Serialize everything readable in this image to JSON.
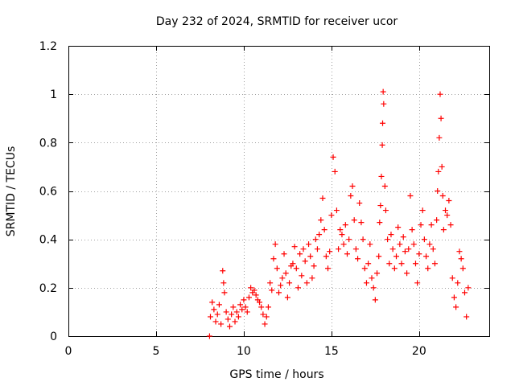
{
  "chart_data": {
    "type": "scatter",
    "title": "Day 232 of 2024, SRMTID for receiver ucor",
    "xlabel": "GPS time / hours",
    "ylabel": "SRMTID / TECUs",
    "xlim": [
      0,
      24
    ],
    "ylim": [
      0,
      1.2
    ],
    "x_ticks": [
      0,
      5,
      10,
      15,
      20
    ],
    "x_tick_labels": [
      "0",
      "5",
      "10",
      "15",
      "20"
    ],
    "y_ticks": [
      0,
      0.2,
      0.4,
      0.6,
      0.8,
      1,
      1.2
    ],
    "y_tick_labels": [
      "0",
      "0.2",
      "0.4",
      "0.6",
      "0.8",
      "1",
      "1.2"
    ],
    "grid": true,
    "marker": "+",
    "series": [
      {
        "name": "SRMTID",
        "color": "#ff0000",
        "points": [
          [
            8.05,
            0.0
          ],
          [
            8.1,
            0.08
          ],
          [
            8.2,
            0.14
          ],
          [
            8.3,
            0.11
          ],
          [
            8.4,
            0.06
          ],
          [
            8.5,
            0.09
          ],
          [
            8.6,
            0.13
          ],
          [
            8.7,
            0.05
          ],
          [
            8.8,
            0.27
          ],
          [
            8.85,
            0.22
          ],
          [
            8.9,
            0.18
          ],
          [
            9.0,
            0.1
          ],
          [
            9.1,
            0.07
          ],
          [
            9.2,
            0.04
          ],
          [
            9.3,
            0.09
          ],
          [
            9.4,
            0.12
          ],
          [
            9.5,
            0.06
          ],
          [
            9.6,
            0.1
          ],
          [
            9.7,
            0.08
          ],
          [
            9.8,
            0.13
          ],
          [
            9.9,
            0.11
          ],
          [
            10.0,
            0.15
          ],
          [
            10.1,
            0.12
          ],
          [
            10.2,
            0.1
          ],
          [
            10.3,
            0.16
          ],
          [
            10.4,
            0.2
          ],
          [
            10.5,
            0.18
          ],
          [
            10.6,
            0.19
          ],
          [
            10.7,
            0.17
          ],
          [
            10.8,
            0.15
          ],
          [
            10.9,
            0.14
          ],
          [
            11.0,
            0.12
          ],
          [
            11.1,
            0.09
          ],
          [
            11.2,
            0.05
          ],
          [
            11.3,
            0.08
          ],
          [
            11.4,
            0.12
          ],
          [
            11.5,
            0.22
          ],
          [
            11.6,
            0.19
          ],
          [
            11.7,
            0.32
          ],
          [
            11.8,
            0.38
          ],
          [
            11.9,
            0.28
          ],
          [
            12.0,
            0.18
          ],
          [
            12.1,
            0.21
          ],
          [
            12.2,
            0.24
          ],
          [
            12.3,
            0.34
          ],
          [
            12.4,
            0.26
          ],
          [
            12.5,
            0.16
          ],
          [
            12.6,
            0.22
          ],
          [
            12.7,
            0.29
          ],
          [
            12.8,
            0.3
          ],
          [
            12.9,
            0.37
          ],
          [
            13.0,
            0.28
          ],
          [
            13.1,
            0.2
          ],
          [
            13.2,
            0.34
          ],
          [
            13.3,
            0.25
          ],
          [
            13.4,
            0.36
          ],
          [
            13.5,
            0.31
          ],
          [
            13.6,
            0.22
          ],
          [
            13.7,
            0.38
          ],
          [
            13.8,
            0.33
          ],
          [
            13.9,
            0.24
          ],
          [
            14.0,
            0.29
          ],
          [
            14.1,
            0.4
          ],
          [
            14.2,
            0.36
          ],
          [
            14.3,
            0.42
          ],
          [
            14.4,
            0.48
          ],
          [
            14.5,
            0.57
          ],
          [
            14.6,
            0.44
          ],
          [
            14.7,
            0.33
          ],
          [
            14.8,
            0.28
          ],
          [
            14.9,
            0.35
          ],
          [
            15.0,
            0.5
          ],
          [
            15.1,
            0.74
          ],
          [
            15.2,
            0.68
          ],
          [
            15.3,
            0.52
          ],
          [
            15.4,
            0.36
          ],
          [
            15.5,
            0.44
          ],
          [
            15.6,
            0.42
          ],
          [
            15.7,
            0.38
          ],
          [
            15.8,
            0.46
          ],
          [
            15.9,
            0.34
          ],
          [
            16.0,
            0.4
          ],
          [
            16.1,
            0.58
          ],
          [
            16.2,
            0.62
          ],
          [
            16.3,
            0.48
          ],
          [
            16.4,
            0.36
          ],
          [
            16.5,
            0.32
          ],
          [
            16.6,
            0.55
          ],
          [
            16.7,
            0.47
          ],
          [
            16.8,
            0.4
          ],
          [
            16.9,
            0.28
          ],
          [
            17.0,
            0.22
          ],
          [
            17.1,
            0.3
          ],
          [
            17.2,
            0.38
          ],
          [
            17.3,
            0.24
          ],
          [
            17.4,
            0.2
          ],
          [
            17.5,
            0.15
          ],
          [
            17.6,
            0.26
          ],
          [
            17.7,
            0.33
          ],
          [
            17.75,
            0.47
          ],
          [
            17.8,
            0.54
          ],
          [
            17.85,
            0.66
          ],
          [
            17.9,
            0.79
          ],
          [
            17.92,
            0.88
          ],
          [
            17.95,
            1.01
          ],
          [
            17.98,
            0.96
          ],
          [
            18.05,
            0.62
          ],
          [
            18.1,
            0.52
          ],
          [
            18.2,
            0.4
          ],
          [
            18.3,
            0.3
          ],
          [
            18.4,
            0.42
          ],
          [
            18.5,
            0.36
          ],
          [
            18.6,
            0.28
          ],
          [
            18.7,
            0.33
          ],
          [
            18.8,
            0.45
          ],
          [
            18.9,
            0.38
          ],
          [
            19.0,
            0.3
          ],
          [
            19.1,
            0.41
          ],
          [
            19.2,
            0.35
          ],
          [
            19.3,
            0.26
          ],
          [
            19.4,
            0.36
          ],
          [
            19.5,
            0.58
          ],
          [
            19.6,
            0.44
          ],
          [
            19.7,
            0.38
          ],
          [
            19.8,
            0.3
          ],
          [
            19.9,
            0.22
          ],
          [
            20.0,
            0.34
          ],
          [
            20.1,
            0.46
          ],
          [
            20.2,
            0.52
          ],
          [
            20.3,
            0.4
          ],
          [
            20.4,
            0.33
          ],
          [
            20.5,
            0.28
          ],
          [
            20.6,
            0.38
          ],
          [
            20.7,
            0.46
          ],
          [
            20.8,
            0.36
          ],
          [
            20.9,
            0.3
          ],
          [
            21.0,
            0.48
          ],
          [
            21.05,
            0.6
          ],
          [
            21.1,
            0.68
          ],
          [
            21.15,
            0.82
          ],
          [
            21.2,
            1.0
          ],
          [
            21.25,
            0.9
          ],
          [
            21.3,
            0.7
          ],
          [
            21.35,
            0.58
          ],
          [
            21.4,
            0.44
          ],
          [
            21.5,
            0.52
          ],
          [
            21.6,
            0.5
          ],
          [
            21.7,
            0.56
          ],
          [
            21.8,
            0.46
          ],
          [
            21.9,
            0.24
          ],
          [
            22.0,
            0.16
          ],
          [
            22.1,
            0.12
          ],
          [
            22.2,
            0.22
          ],
          [
            22.3,
            0.35
          ],
          [
            22.4,
            0.32
          ],
          [
            22.5,
            0.28
          ],
          [
            22.6,
            0.18
          ],
          [
            22.7,
            0.08
          ],
          [
            22.8,
            0.2
          ]
        ]
      }
    ]
  }
}
